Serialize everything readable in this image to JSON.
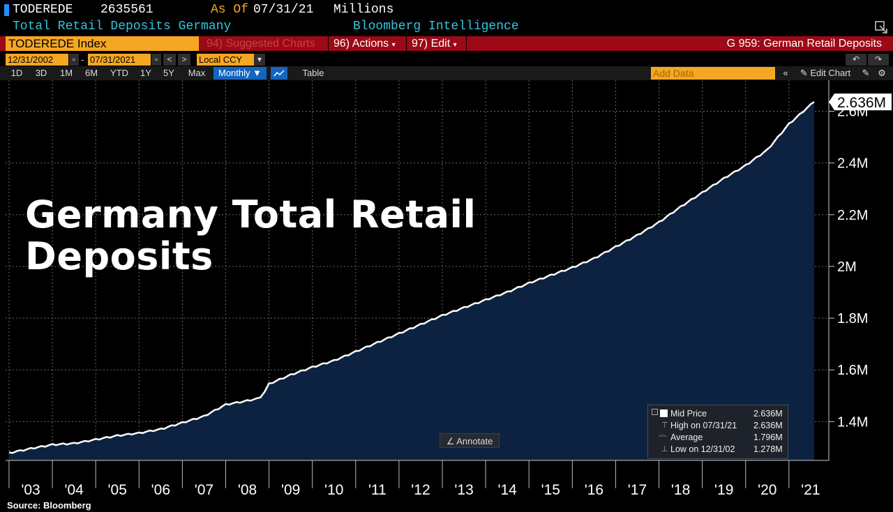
{
  "header": {
    "ticker": "TODEREDE",
    "last_value": "2635561",
    "as_of_label": "As Of",
    "as_of_date": "07/31/21",
    "units": "Millions",
    "description": "Total Retail Deposits Germany",
    "source_label": "Bloomberg Intelligence"
  },
  "toolbar": {
    "index_label": "TODEREDE Index",
    "suggested_charts": "94) Suggested Charts",
    "actions": "96) Actions",
    "edit": "97) Edit",
    "page_title": "G 959: German Retail Deposits",
    "start_date": "12/31/2002",
    "date_dash": "-",
    "end_date": "07/31/2021",
    "currency": "Local CCY",
    "add_data_placeholder": "Add Data",
    "edit_chart": "Edit Chart",
    "table": "Table",
    "timeframes": [
      "1D",
      "3D",
      "1M",
      "6M",
      "YTD",
      "1Y",
      "5Y",
      "Max"
    ],
    "frequency": "Monthly"
  },
  "overlay_title_line1": "Germany Total Retail",
  "overlay_title_line2": "Deposits",
  "annotate_label": "Annotate",
  "legend": {
    "mid_label": "Mid Price",
    "mid_value": "2.636M",
    "high_label": "High on 07/31/21",
    "high_value": "2.636M",
    "avg_label": "Average",
    "avg_value": "1.796M",
    "low_label": "Low on 12/31/02",
    "low_value": "1.278M"
  },
  "source": "Source: Bloomberg",
  "colors": {
    "line": "#ffffff",
    "fill": "#0c2240",
    "accent": "#f5a623",
    "toolbar_red": "#9b0a16",
    "link_blue": "#35c4e0"
  },
  "chart_data": {
    "type": "area",
    "title": "Germany Total Retail Deposits",
    "ylabel": "Millions",
    "ylim": [
      1.25,
      2.72
    ],
    "y_ticks": [
      1.4,
      1.6,
      1.8,
      2.0,
      2.2,
      2.4,
      2.6
    ],
    "y_tick_labels": [
      "1.4M",
      "1.6M",
      "1.8M",
      "2M",
      "2.2M",
      "2.4M",
      "2.6M"
    ],
    "x_tick_labels": [
      "'03",
      "'04",
      "'05",
      "'06",
      "'07",
      "'08",
      "'09",
      "'10",
      "'11",
      "'12",
      "'13",
      "'14",
      "'15",
      "'16",
      "'17",
      "'18",
      "'19",
      "'20",
      "'21"
    ],
    "last_value_label": "2.636M",
    "grid": true,
    "series": [
      {
        "name": "TODEREDE Index (Mid Price)",
        "x": [
          2003.0,
          2003.5,
          2004.0,
          2004.5,
          2005.0,
          2005.5,
          2006.0,
          2006.5,
          2007.0,
          2007.5,
          2008.0,
          2008.5,
          2008.8,
          2009.0,
          2009.5,
          2010.0,
          2010.5,
          2011.0,
          2011.5,
          2012.0,
          2012.5,
          2013.0,
          2013.5,
          2014.0,
          2014.5,
          2015.0,
          2015.5,
          2016.0,
          2016.5,
          2017.0,
          2017.5,
          2018.0,
          2018.5,
          2019.0,
          2019.5,
          2020.0,
          2020.5,
          2021.0,
          2021.58
        ],
        "values": [
          1.278,
          1.295,
          1.31,
          1.315,
          1.33,
          1.345,
          1.355,
          1.37,
          1.395,
          1.42,
          1.465,
          1.48,
          1.49,
          1.545,
          1.58,
          1.61,
          1.635,
          1.67,
          1.705,
          1.74,
          1.775,
          1.81,
          1.84,
          1.87,
          1.9,
          1.935,
          1.965,
          1.995,
          2.03,
          2.075,
          2.12,
          2.17,
          2.23,
          2.285,
          2.34,
          2.39,
          2.45,
          2.55,
          2.636
        ]
      }
    ]
  }
}
